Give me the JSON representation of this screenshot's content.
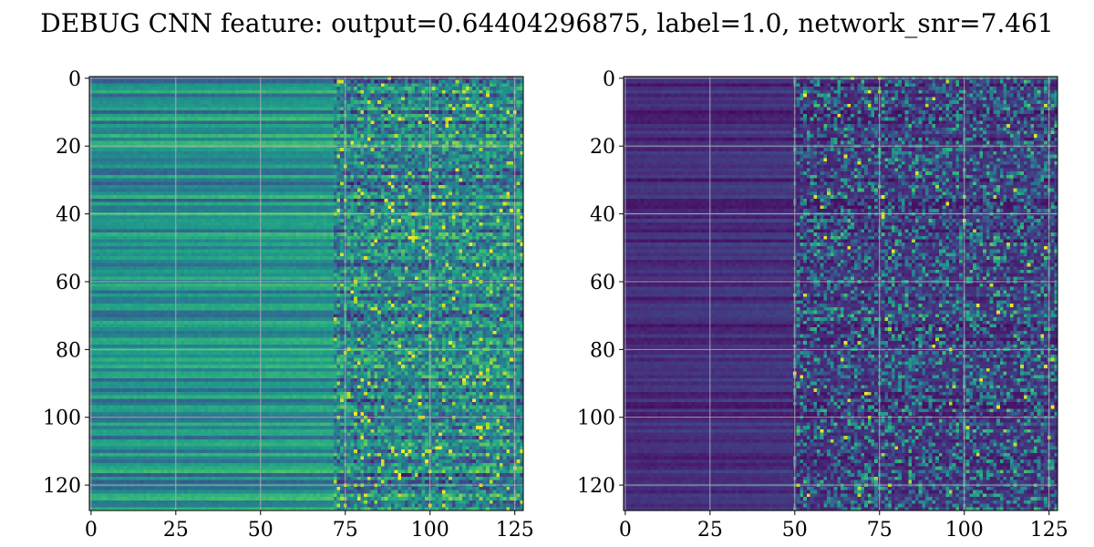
{
  "figure": {
    "title": "DEBUG CNN feature: output=0.64404296875, label=1.0, network_snr=7.461"
  },
  "chart_data": [
    {
      "type": "heatmap",
      "title": "",
      "xlabel": "",
      "ylabel": "",
      "rows": 128,
      "cols": 128,
      "xlim": [
        -0.5,
        127.5
      ],
      "ylim": [
        127.5,
        -0.5
      ],
      "x_ticks": [
        0,
        25,
        50,
        75,
        100,
        125
      ],
      "y_ticks": [
        0,
        20,
        40,
        60,
        80,
        100,
        120
      ],
      "grid": true,
      "colormap": "viridis",
      "description_of_values": "Row-wise horizontal banding; columns 0-~75 smooth teal/green (mid intensity), columns ~75-127 noisy with scattered bright yellow pixels",
      "dominant_colors": [
        "#3b528b",
        "#21918c",
        "#5ec962",
        "#fde725"
      ]
    },
    {
      "type": "heatmap",
      "title": "",
      "xlabel": "",
      "ylabel": "",
      "rows": 128,
      "cols": 128,
      "xlim": [
        -0.5,
        127.5
      ],
      "ylim": [
        127.5,
        -0.5
      ],
      "x_ticks": [
        0,
        25,
        50,
        75,
        100,
        125
      ],
      "y_ticks": [
        0,
        20,
        40,
        60,
        80,
        100,
        120
      ],
      "grid": true,
      "colormap": "viridis",
      "description_of_values": "Mostly dark purple low values with horizontal banding; columns ~50-127 noisy with sparse teal/yellow pixels",
      "dominant_colors": [
        "#440154",
        "#3b528b",
        "#21918c",
        "#fde725"
      ]
    }
  ]
}
